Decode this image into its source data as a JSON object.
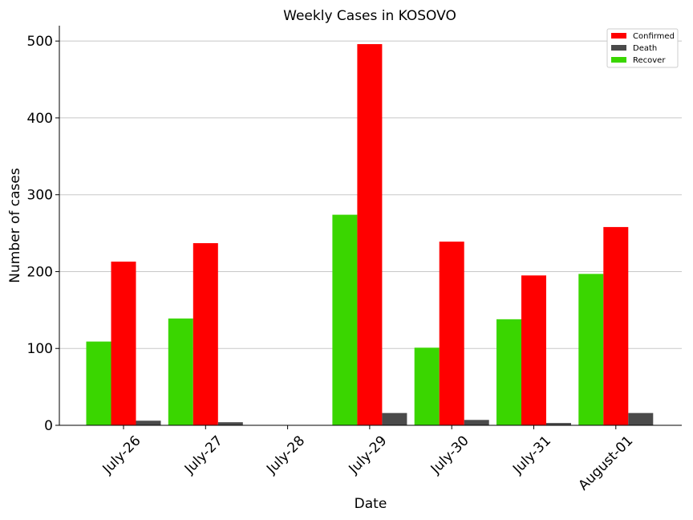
{
  "chart_data": {
    "type": "bar",
    "title": "Weekly Cases in KOSOVO",
    "xlabel": "Date",
    "ylabel": "Number of cases",
    "categories": [
      "July-26",
      "July-27",
      "July-28",
      "July-29",
      "July-30",
      "July-31",
      "August-01"
    ],
    "series": [
      {
        "name": "Recover",
        "color": "#3ad600",
        "values": [
          109,
          139,
          0,
          274,
          101,
          138,
          197
        ]
      },
      {
        "name": "Confirmed",
        "color": "#ff0000",
        "values": [
          213,
          237,
          0,
          496,
          239,
          195,
          258
        ]
      },
      {
        "name": "Death",
        "color": "#4a4a4a",
        "values": [
          6,
          4,
          0,
          16,
          7,
          3,
          16
        ]
      }
    ],
    "legend_order": [
      "Confirmed",
      "Death",
      "Recover"
    ],
    "ylim": [
      0,
      520
    ],
    "yticks": [
      0,
      100,
      200,
      300,
      400,
      500
    ],
    "grid": "horizontal",
    "legend_position": "top-right"
  }
}
